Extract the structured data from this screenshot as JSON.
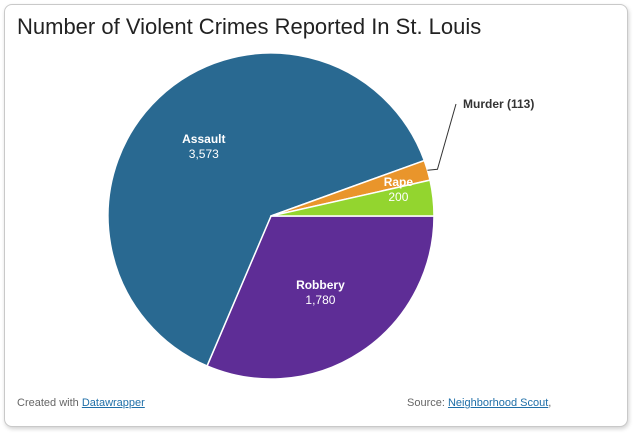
{
  "chart_data": {
    "type": "pie",
    "title": "Number of Violent Crimes Reported In St. Louis",
    "categories": [
      "Robbery",
      "Assault",
      "Murder",
      "Rape"
    ],
    "values": [
      1780,
      3573,
      113,
      200
    ],
    "value_labels": [
      "1,780",
      "3,573",
      "(113)",
      "200"
    ],
    "colors": [
      "#5e2d96",
      "#296991",
      "#e9952b",
      "#93d52f"
    ],
    "legend": "none",
    "external_labels": [
      "Murder (113)"
    ]
  },
  "footer": {
    "created_prefix": "Created with",
    "created_link": "Datawrapper",
    "source_prefix": "Source:",
    "source_link": "Neighborhood Scout",
    "source_suffix": ","
  }
}
